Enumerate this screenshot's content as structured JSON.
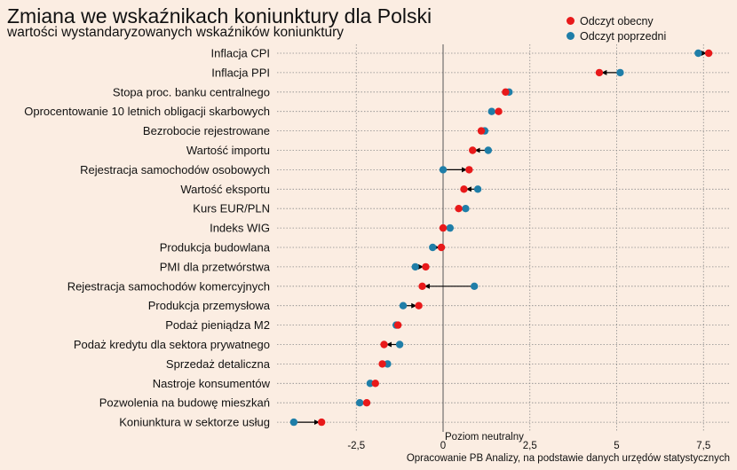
{
  "title": "Zmiana we wskaźnikach koniunktury dla Polski",
  "subtitle": "wartości wystandaryzowanych wskaźników koniunktury",
  "caption": "Opracowanie  PB Analizy, na podstawie danych urzędów statystycznych",
  "colors": {
    "background": "#fbede2",
    "current": "#e8191a",
    "previous": "#1f7ea8",
    "arrow": "#000000",
    "grid": "#8a8a8a",
    "zero_line": "#555555"
  },
  "chart_data": {
    "type": "dot",
    "xlabel": "",
    "ylabel": "",
    "xlim": [
      -4.8,
      8.2
    ],
    "xticks": [
      -2.5,
      0,
      2.5,
      5,
      7.5
    ],
    "xtick_labels": [
      "-2,5",
      "0",
      "2,5",
      "5",
      "7,5"
    ],
    "grid": true,
    "legend_position": "top-right",
    "reference_line": {
      "x": 0,
      "label": "Poziom neutralny"
    },
    "categories": [
      "Inflacja CPI",
      "Inflacja PPI",
      "Stopa proc. banku centralnego",
      "Oprocentowanie 10 letnich obligacji skarbowych",
      "Bezrobocie rejestrowane",
      "Wartość importu",
      "Rejestracja samochodów osobowych",
      "Wartość eksportu",
      "Kurs EUR/PLN",
      "Indeks WIG",
      "Produkcja budowlana",
      "PMI dla przetwórstwa",
      "Rejestracja samochodów komercyjnych",
      "Produkcja przemysłowa",
      "Podaż pieniądza M2",
      "Podaż kredytu dla sektora prywatnego",
      "Sprzedaż detaliczna",
      "Nastroje konsumentów",
      "Pozwolenia na budowę mieszkań",
      "Koniunktura w sektorze usług"
    ],
    "series": [
      {
        "name": "Odczyt obecny",
        "values": [
          7.65,
          4.5,
          1.8,
          1.6,
          1.1,
          0.85,
          0.75,
          0.6,
          0.45,
          0.0,
          -0.05,
          -0.5,
          -0.6,
          -0.7,
          -1.3,
          -1.7,
          -1.75,
          -1.95,
          -2.2,
          -3.5
        ]
      },
      {
        "name": "Odczyt poprzedni",
        "values": [
          7.35,
          5.1,
          1.9,
          1.4,
          1.2,
          1.3,
          0.0,
          1.0,
          0.65,
          0.2,
          -0.3,
          -0.8,
          0.9,
          -1.15,
          -1.35,
          -1.25,
          -1.6,
          -2.1,
          -2.4,
          -4.3
        ]
      }
    ]
  }
}
